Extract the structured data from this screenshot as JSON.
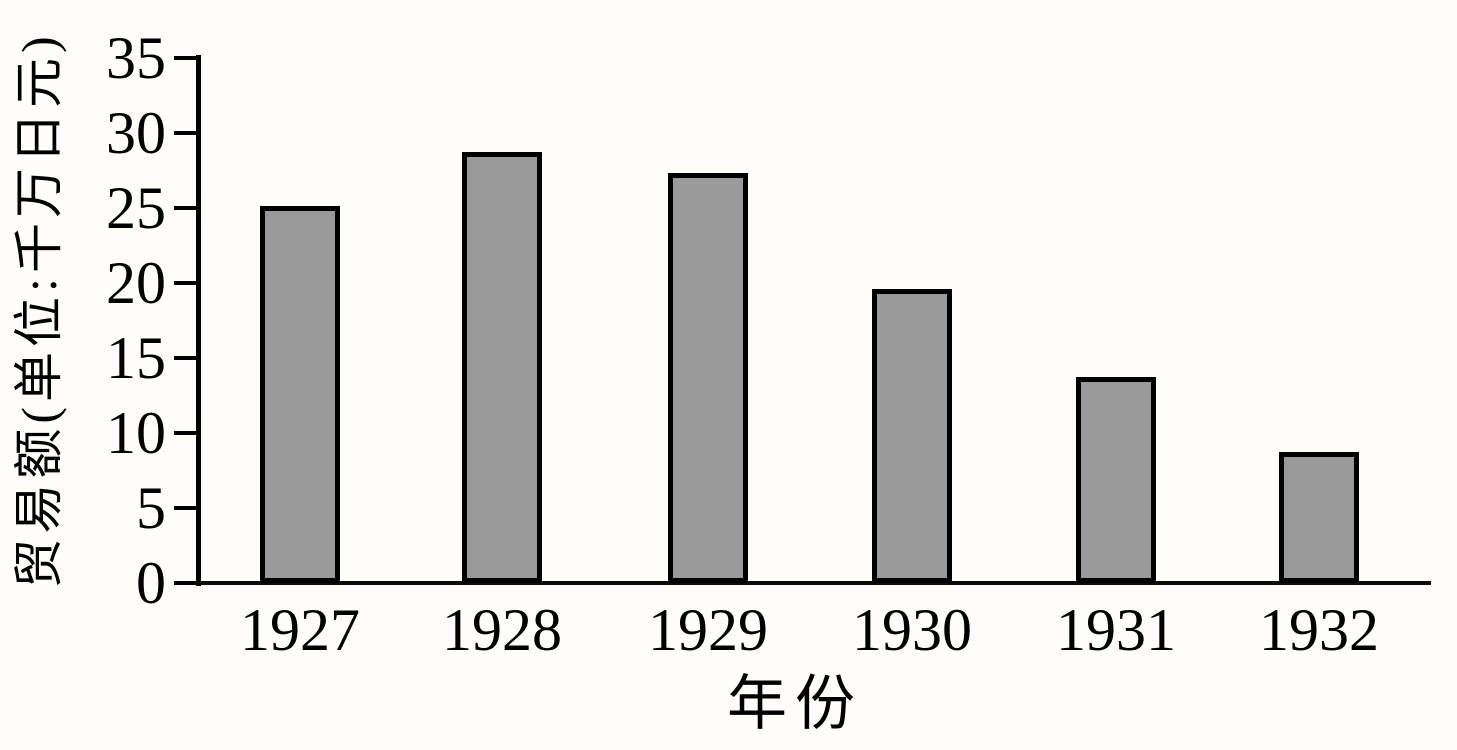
{
  "chart_data": {
    "type": "bar",
    "title": "",
    "xlabel": "年份",
    "ylabel": "贸易额(单位:千万日元)",
    "categories": [
      "1927",
      "1928",
      "1929",
      "1930",
      "1931",
      "1932"
    ],
    "values": [
      25.1,
      28.7,
      27.3,
      19.6,
      13.7,
      8.7
    ],
    "yticks": [
      0,
      5,
      10,
      15,
      20,
      25,
      30,
      35
    ],
    "ylim": [
      0,
      35
    ],
    "legend": "none",
    "grid": "off",
    "colors": {
      "bar_fill": "#999999",
      "bar_border": "#000000",
      "axis": "#000000",
      "text": "#000000",
      "background": "#fffefa"
    }
  }
}
